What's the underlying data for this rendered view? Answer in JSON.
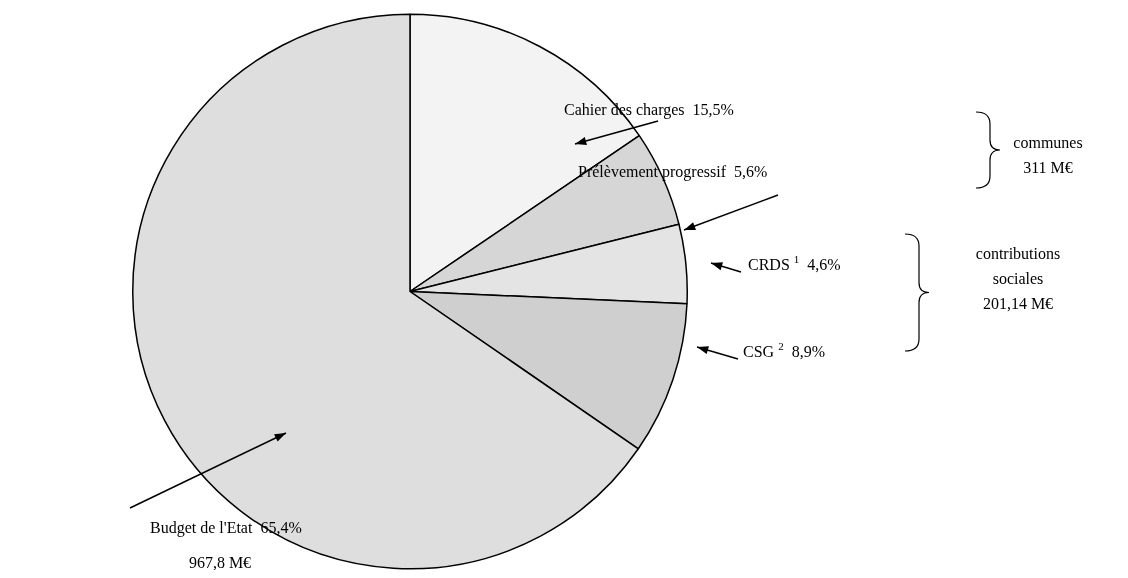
{
  "chart_data": {
    "type": "pie",
    "categories": [
      "Cahier des charges",
      "Prélèvement progressif",
      "CRDS $^{1}$",
      "CSG $^{2}$",
      "Budget de l'Etat"
    ],
    "values": [
      15.5,
      5.6,
      4.6,
      8.9,
      65.4
    ],
    "colors": [
      "#f3f3f3",
      "#d6d6d6",
      "#e4e4e4",
      "#cfcfcf",
      "#dedede"
    ],
    "value_labels": [
      "15,5%",
      "5,6%",
      "4,6%",
      "8,9%",
      "65,4%"
    ],
    "annotations": [
      "communes\n311 M€",
      "contributions\nsociales\n201,14 M€",
      "967,8 M€"
    ],
    "legend": false
  }
}
